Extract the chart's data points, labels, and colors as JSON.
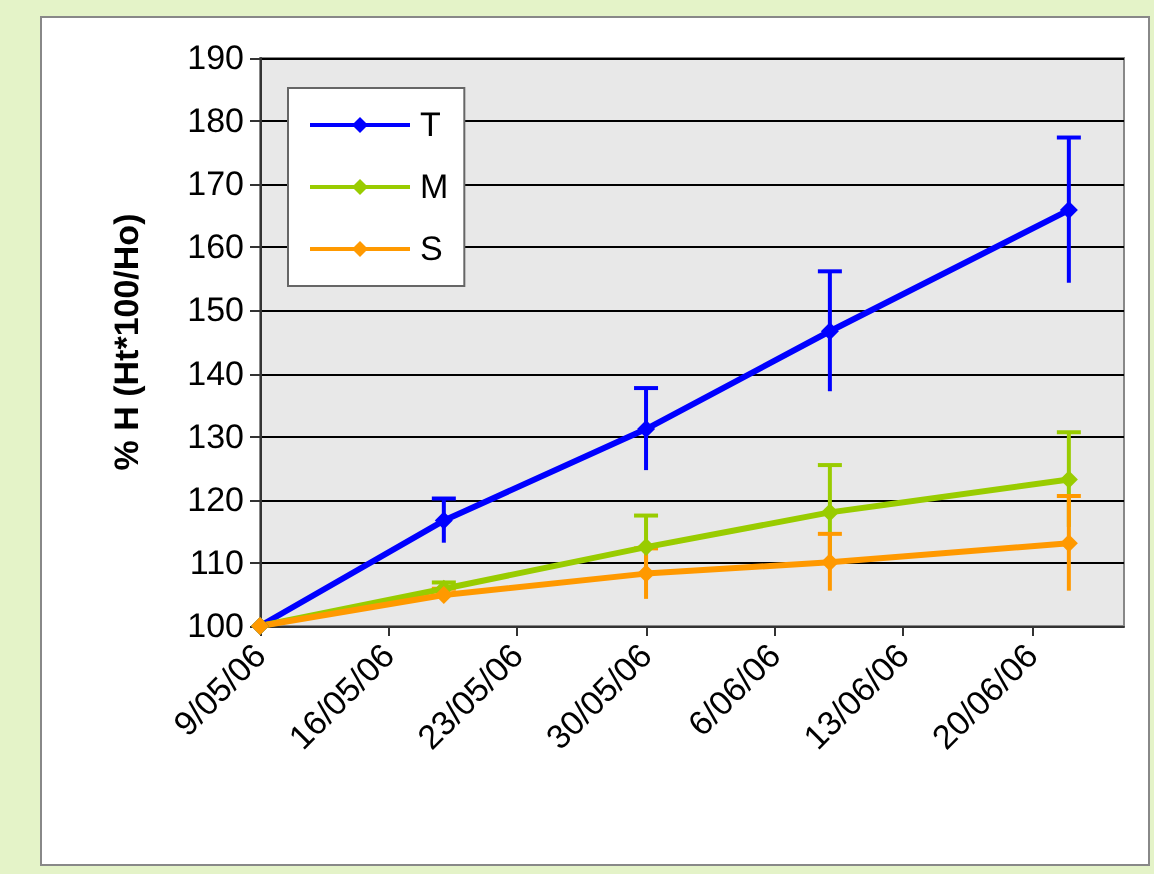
{
  "chart_data": {
    "type": "line",
    "ylabel": "% H (Ht*100/Ho)",
    "x": [
      "--05-09",
      "--05-19",
      "--05-30",
      "--06-09",
      "--06-22"
    ],
    "series": [
      {
        "name": "T",
        "color": "#0000ff",
        "values": [
          100,
          116.7,
          131.2,
          146.7,
          165.9
        ],
        "errors": [
          null,
          3.5,
          6.5,
          9.5,
          11.5
        ]
      },
      {
        "name": "M",
        "color": "#99cc00",
        "values": [
          100,
          105.9,
          112.5,
          118,
          123.2
        ],
        "errors": [
          null,
          1,
          5,
          7.5,
          7.5
        ]
      },
      {
        "name": "S",
        "color": "#ff9900",
        "values": [
          100,
          104.9,
          108.3,
          110.1,
          113.1
        ],
        "errors": [
          null,
          1,
          4,
          4.5,
          7.5
        ]
      }
    ],
    "xlim": [
      "--05-09",
      "--06-25"
    ],
    "xticks": [
      {
        "value": "--05-09",
        "label": "9/05/06"
      },
      {
        "value": "--05-16",
        "label": "16/05/06"
      },
      {
        "value": "--05-23",
        "label": "23/05/06"
      },
      {
        "value": "--05-30",
        "label": "30/05/06"
      },
      {
        "value": "--06-06",
        "label": "6/06/06"
      },
      {
        "value": "--06-13",
        "label": "13/06/06"
      },
      {
        "value": "--06-20",
        "label": "20/06/06"
      }
    ],
    "ylim": [
      100,
      190
    ],
    "yticks": [
      100,
      110,
      120,
      130,
      140,
      150,
      160,
      170,
      180,
      190
    ],
    "grid": "y",
    "legend": "top left",
    "marker": "diamond",
    "line_style": "solid"
  }
}
